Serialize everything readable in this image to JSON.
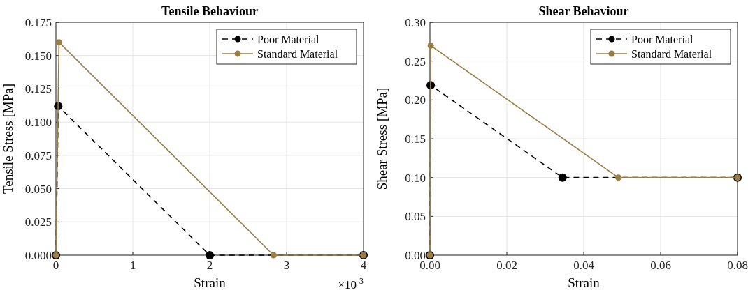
{
  "chart_data": [
    {
      "type": "line",
      "title": "Tensile Behaviour",
      "xlabel": "Strain",
      "ylabel": "Tensile Stress [MPa]",
      "xlim": [
        0,
        4
      ],
      "xticks": [
        0,
        1,
        2,
        3,
        4
      ],
      "ylim": [
        0,
        0.175
      ],
      "yticks": [
        {
          "value": 0,
          "label": "0.000"
        },
        {
          "value": 0.025,
          "label": "0.025"
        },
        {
          "value": 0.05,
          "label": "0.050"
        },
        {
          "value": 0.075,
          "label": "0.075"
        },
        {
          "value": 0.1,
          "label": "0.100"
        },
        {
          "value": 0.125,
          "label": "0.125"
        },
        {
          "value": 0.15,
          "label": "0.150"
        },
        {
          "value": 0.175,
          "label": "0.175"
        }
      ],
      "grid": true,
      "legend": "top right",
      "marker": "circle",
      "annotations": [
        "×10$^{-3}$"
      ],
      "series": [
        {
          "name": "Poor Material",
          "color": "#000000",
          "line_style": "dashed",
          "x": [
            0,
            0.03,
            2,
            4
          ],
          "values": [
            0,
            0.112,
            0,
            0
          ]
        },
        {
          "name": "Standard Material",
          "color": "#9b7e46",
          "line_style": "solid",
          "x": [
            0,
            0.04,
            2.83,
            4
          ],
          "values": [
            0,
            0.16,
            0,
            0
          ]
        }
      ]
    },
    {
      "type": "line",
      "title": "Shear Behaviour",
      "xlabel": "Strain",
      "ylabel": "Shear Stress [MPa]",
      "xlim": [
        0,
        0.08
      ],
      "xticks": [
        {
          "value": 0,
          "label": "0.00"
        },
        {
          "value": 0.02,
          "label": "0.02"
        },
        {
          "value": 0.04,
          "label": "0.04"
        },
        {
          "value": 0.06,
          "label": "0.06"
        },
        {
          "value": 0.08,
          "label": "0.08"
        }
      ],
      "ylim": [
        0,
        0.3
      ],
      "yticks": [
        {
          "value": 0,
          "label": "0.00"
        },
        {
          "value": 0.05,
          "label": "0.05"
        },
        {
          "value": 0.1,
          "label": "0.10"
        },
        {
          "value": 0.15,
          "label": "0.15"
        },
        {
          "value": 0.2,
          "label": "0.20"
        },
        {
          "value": 0.25,
          "label": "0.25"
        },
        {
          "value": 0.3,
          "label": "0.30"
        }
      ],
      "grid": true,
      "legend": "top right",
      "marker": "circle",
      "series": [
        {
          "name": "Poor Material",
          "color": "#000000",
          "line_style": "dashed",
          "x": [
            0,
            0.0002,
            0.0345,
            0.08
          ],
          "values": [
            0,
            0.219,
            0.1,
            0.1
          ]
        },
        {
          "name": "Standard Material",
          "color": "#9b7e46",
          "line_style": "solid",
          "x": [
            0,
            0.0002,
            0.049,
            0.08
          ],
          "values": [
            0,
            0.27,
            0.1,
            0.1
          ]
        }
      ]
    }
  ]
}
